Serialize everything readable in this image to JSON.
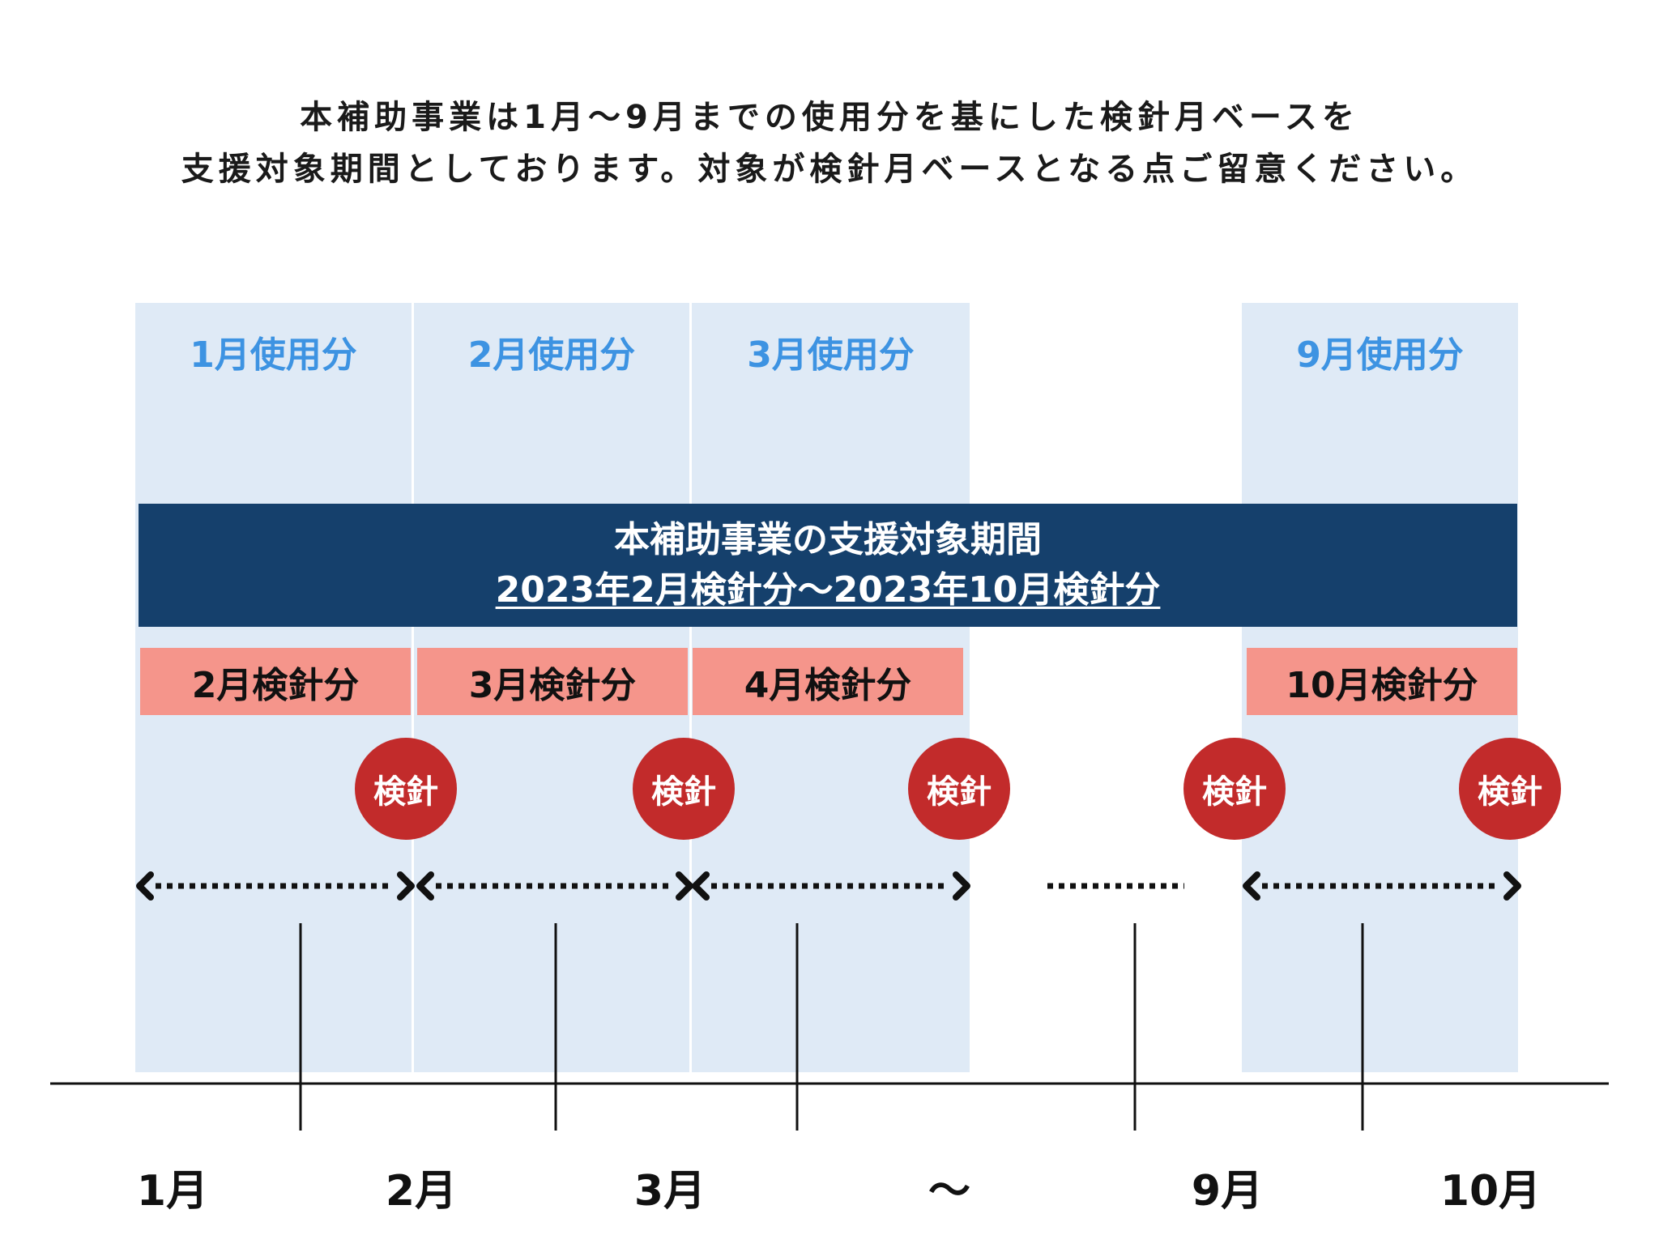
{
  "heading": {
    "line1": "本補助事業は1月〜9月までの使用分を基にした検針月ベースを",
    "line2": "支援対象期間としております。対象が検針月ベースとなる点ご留意ください。"
  },
  "usage_columns": [
    {
      "label": "1月使用分"
    },
    {
      "label": "2月使用分"
    },
    {
      "label": "3月使用分"
    },
    {
      "label": "9月使用分"
    }
  ],
  "banner": {
    "line1": "本補助事業の支援対象期間",
    "line2": "2023年2月検針分〜2023年10月検針分"
  },
  "readings": [
    {
      "label": "2月検針分"
    },
    {
      "label": "3月検針分"
    },
    {
      "label": "4月検針分"
    },
    {
      "label": "10月検針分"
    }
  ],
  "meter_badge": {
    "label": "検針",
    "count": 5
  },
  "timeline": {
    "months": [
      "1月",
      "2月",
      "3月",
      "〜",
      "9月",
      "10月"
    ]
  },
  "colors": {
    "column_bg": "#dfeaf6",
    "usage_text": "#3d93e2",
    "banner_bg": "#15406c",
    "reading_bg": "#f5958b",
    "meter_bg": "#c22b2b"
  }
}
